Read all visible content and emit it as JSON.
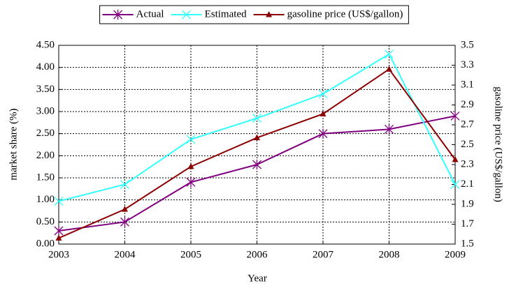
{
  "chart_data": {
    "type": "line",
    "xlabel": "Year",
    "ylabel": "market share (%)",
    "y2label": "gasoline price (US$/gallon)",
    "x": [
      2003,
      2004,
      2005,
      2006,
      2007,
      2008,
      2009
    ],
    "xlim": [
      2003,
      2009
    ],
    "xticks": [
      2003,
      2004,
      2005,
      2006,
      2007,
      2008,
      2009
    ],
    "ylim": [
      0,
      4.5
    ],
    "yticks": [
      {
        "value": 0,
        "label": "0.00"
      },
      {
        "value": 0.5,
        "label": "0.50"
      },
      {
        "value": 1,
        "label": "1.00"
      },
      {
        "value": 1.5,
        "label": "1.50"
      },
      {
        "value": 2,
        "label": "2.00"
      },
      {
        "value": 2.5,
        "label": "2.50"
      },
      {
        "value": 3,
        "label": "3.00"
      },
      {
        "value": 3.5,
        "label": "3.50"
      },
      {
        "value": 4,
        "label": "4.00"
      },
      {
        "value": 4.5,
        "label": "4.50"
      }
    ],
    "y2lim": [
      1.5,
      3.5
    ],
    "y2ticks": [
      1.5,
      1.7,
      1.9,
      2.1,
      2.3,
      2.5,
      2.7,
      2.9,
      3.1,
      3.3,
      3.5
    ],
    "grid": true,
    "legend": "top",
    "series": [
      {
        "name": "Actual",
        "color": "#800080",
        "marker": "asterisk",
        "values": [
          0.3,
          0.5,
          1.4,
          1.8,
          2.5,
          2.6,
          2.9
        ]
      },
      {
        "name": "Estimated",
        "color": "#33ffff",
        "marker": "x",
        "values": [
          0.97,
          1.35,
          2.37,
          2.85,
          3.4,
          4.3,
          1.35
        ]
      },
      {
        "name": "gasoline price (US$/gallon)",
        "color": "#8b0000",
        "marker": "triangle",
        "axis": "y2",
        "values": [
          1.56,
          1.85,
          2.28,
          2.57,
          2.81,
          3.26,
          2.35
        ]
      }
    ]
  }
}
